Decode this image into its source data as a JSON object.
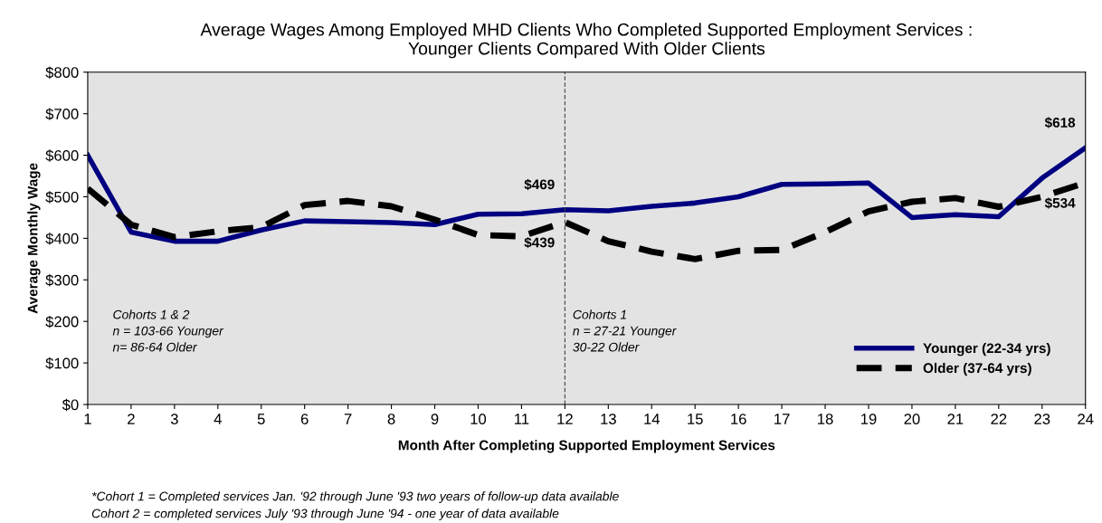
{
  "chart_data": {
    "type": "line",
    "title": "Average Wages Among Employed MHD Clients Who Completed Supported Employment Services :\nYounger Clients Compared With Older Clients",
    "xlabel": "Month After Completing Supported Employment Services",
    "ylabel": "Average Monthly Wage",
    "x": [
      1,
      2,
      3,
      4,
      5,
      6,
      7,
      8,
      9,
      10,
      11,
      12,
      13,
      14,
      15,
      16,
      17,
      18,
      19,
      20,
      21,
      22,
      23,
      24
    ],
    "series": [
      {
        "name": "Younger (22-34 yrs)",
        "color": "#000080",
        "line_style": "solid",
        "values": [
          600,
          415,
          393,
          393,
          420,
          442,
          440,
          438,
          433,
          458,
          459,
          469,
          466,
          477,
          485,
          500,
          530,
          531,
          533,
          450,
          457,
          452,
          545,
          618
        ],
        "value_labels": [
          null,
          null,
          null,
          null,
          null,
          null,
          null,
          null,
          null,
          null,
          null,
          "$469",
          null,
          null,
          null,
          null,
          null,
          null,
          null,
          null,
          null,
          null,
          null,
          "$618"
        ]
      },
      {
        "name": "Older (37-64 yrs)",
        "color": "#000000",
        "line_style": "dashed",
        "values": [
          520,
          433,
          403,
          417,
          427,
          480,
          490,
          477,
          445,
          408,
          405,
          439,
          393,
          368,
          350,
          370,
          372,
          415,
          465,
          488,
          497,
          476,
          500,
          534
        ],
        "value_labels": [
          null,
          null,
          null,
          null,
          null,
          null,
          null,
          null,
          null,
          null,
          null,
          "$439",
          null,
          null,
          null,
          null,
          null,
          null,
          null,
          null,
          null,
          null,
          null,
          "$534"
        ]
      }
    ],
    "xlim": [
      1,
      24
    ],
    "xticks": [
      1,
      2,
      3,
      4,
      5,
      6,
      7,
      8,
      9,
      10,
      11,
      12,
      13,
      14,
      15,
      16,
      17,
      18,
      19,
      20,
      21,
      22,
      23,
      24
    ],
    "ylim": [
      0,
      800
    ],
    "yticks": [
      {
        "value": 0,
        "label": "$0"
      },
      {
        "value": 100,
        "label": "$100"
      },
      {
        "value": 200,
        "label": "$200"
      },
      {
        "value": 300,
        "label": "$300"
      },
      {
        "value": 400,
        "label": "$400"
      },
      {
        "value": 500,
        "label": "$500"
      },
      {
        "value": 600,
        "label": "$600"
      },
      {
        "value": 700,
        "label": "$700"
      },
      {
        "value": 800,
        "label": "$800"
      }
    ],
    "ref_lines": [
      {
        "axis": "x",
        "value": 12,
        "color": "#404040",
        "line_style": "dashed"
      }
    ],
    "annotations": [
      "Cohorts 1 & 2\nn = 103-66 Younger\nn= 86-64 Older",
      "Cohorts 1\nn = 27-21 Younger\n30-22 Older",
      "*Cohort 1 = Completed services Jan. '92 through June '93 two years of follow-up data available\nCohort 2 = completed services July '93 through June '94 - one year of data available"
    ],
    "grid": false,
    "legend": "bottom right",
    "marker": "none"
  }
}
